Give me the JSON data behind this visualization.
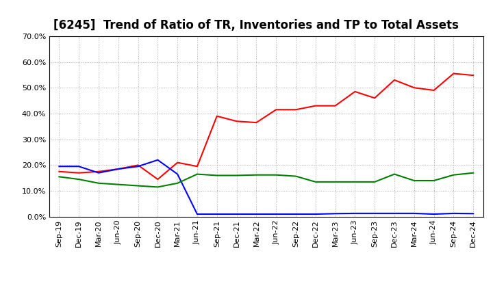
{
  "title": "[6245]  Trend of Ratio of TR, Inventories and TP to Total Assets",
  "x_labels": [
    "Sep-19",
    "Dec-19",
    "Mar-20",
    "Jun-20",
    "Sep-20",
    "Dec-20",
    "Mar-21",
    "Jun-21",
    "Sep-21",
    "Dec-21",
    "Mar-22",
    "Jun-22",
    "Sep-22",
    "Dec-22",
    "Mar-23",
    "Jun-23",
    "Sep-23",
    "Dec-23",
    "Mar-24",
    "Jun-24",
    "Sep-24",
    "Dec-24"
  ],
  "trade_receivables": [
    0.175,
    0.17,
    0.175,
    0.185,
    0.2,
    0.145,
    0.21,
    0.195,
    0.39,
    0.37,
    0.365,
    0.415,
    0.415,
    0.43,
    0.43,
    0.485,
    0.46,
    0.53,
    0.5,
    0.49,
    0.555,
    0.548
  ],
  "inventories": [
    0.195,
    0.195,
    0.17,
    0.185,
    0.195,
    0.22,
    0.165,
    0.01,
    0.01,
    0.01,
    0.01,
    0.01,
    0.01,
    0.01,
    0.012,
    0.013,
    0.013,
    0.013,
    0.013,
    0.01,
    0.013,
    0.012
  ],
  "trade_payables": [
    0.155,
    0.145,
    0.13,
    0.125,
    0.12,
    0.115,
    0.13,
    0.165,
    0.16,
    0.16,
    0.162,
    0.162,
    0.157,
    0.135,
    0.135,
    0.135,
    0.135,
    0.165,
    0.14,
    0.14,
    0.162,
    0.17
  ],
  "tr_color": "#ff0000",
  "inv_color": "#0000ff",
  "tp_color": "#008000",
  "ylim": [
    0.0,
    0.7
  ],
  "yticks": [
    0.0,
    0.1,
    0.2,
    0.3,
    0.4,
    0.5,
    0.6,
    0.7
  ],
  "background_color": "#ffffff",
  "grid_color": "#aaaaaa",
  "line_width": 1.5,
  "title_fontsize": 12,
  "tick_fontsize": 8,
  "legend_fontsize": 9
}
